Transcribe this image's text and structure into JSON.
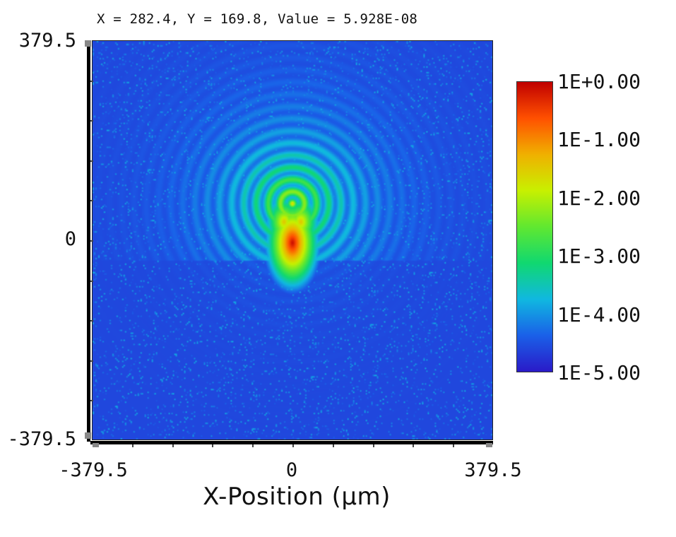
{
  "readout": {
    "x_label": "X",
    "x_value": "282.4",
    "y_label": "Y",
    "y_value": "169.8",
    "value_label": "Value",
    "value": "5.928E-08"
  },
  "chart_data": {
    "type": "heatmap",
    "title": "",
    "xlabel": "X-Position (µm)",
    "ylabel": "",
    "xlim": [
      -379.5,
      379.5
    ],
    "ylim": [
      -379.5,
      379.5
    ],
    "x_ticks": [
      "-379.5",
      "0",
      "379.5"
    ],
    "y_ticks": [
      "379.5",
      "0",
      "-379.5"
    ],
    "scale": "log",
    "colorbar": {
      "min": 1e-05,
      "max": 1,
      "labels": [
        "1E+0.00",
        "1E-1.00",
        "1E-2.00",
        "1E-3.00",
        "1E-4.00",
        "1E-5.00"
      ],
      "colors": [
        "#c00000",
        "#ff5000",
        "#f0b000",
        "#c8f000",
        "#60e830",
        "#10d870",
        "#10b8e0",
        "#1a60e8",
        "#2a1ac8"
      ]
    },
    "grid": false,
    "peak": {
      "x": 0,
      "y": 0,
      "value": 1
    }
  }
}
